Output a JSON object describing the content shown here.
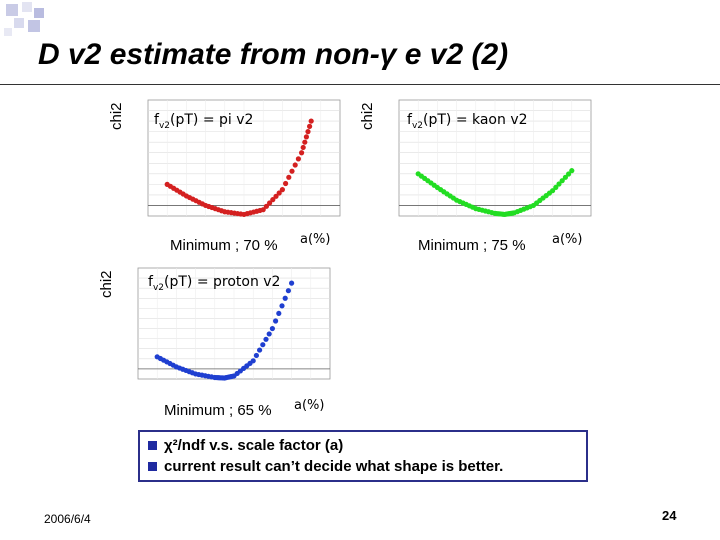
{
  "slide": {
    "title": "D v2 estimate from non-γ e v2 (2)",
    "date": "2006/6/4",
    "page_number": "24"
  },
  "notes": [
    "χ²/ndf v.s. scale factor (a)",
    "current result can’t decide what shape is better."
  ],
  "colors": {
    "bullet": "#1f2aa0",
    "box_border": "#2b2f8a",
    "pi_curve": "#d42020",
    "kaon_curve": "#22dd22",
    "proton_curve": "#1f3fd0"
  },
  "plots": [
    {
      "id": "pi",
      "ylabel": "chi2",
      "formula_main": "f",
      "formula_sub": "v2",
      "formula_rest": "(pT) = pi v2",
      "minimum_text": "Minimum ; 70 %",
      "xlabel": "a(%)"
    },
    {
      "id": "kaon",
      "ylabel": "chi2",
      "formula_main": "f",
      "formula_sub": "v2",
      "formula_rest": "(pT) = kaon v2",
      "minimum_text": "Minimum ; 75 %",
      "xlabel": "a(%)"
    },
    {
      "id": "proton",
      "ylabel": "chi2",
      "formula_main": "f",
      "formula_sub": "v2",
      "formula_rest": "(pT) = proton v2",
      "minimum_text": "Minimum ; 65 %",
      "xlabel": "a(%)"
    }
  ],
  "chart_data": [
    {
      "type": "scatter",
      "title": "",
      "xlabel": "a(%)",
      "ylabel": "chi2",
      "ylim": [
        0,
        11
      ],
      "series": [
        {
          "name": "pi",
          "minimum_x": 70,
          "x": [
            30,
            40,
            50,
            60,
            70,
            80,
            90,
            100,
            105
          ],
          "values": [
            3.0,
            1.9,
            1.0,
            0.4,
            0.15,
            0.6,
            2.5,
            6.0,
            9.0
          ]
        }
      ]
    },
    {
      "type": "scatter",
      "title": "",
      "xlabel": "a(%)",
      "ylabel": "chi2",
      "ylim": [
        0,
        11
      ],
      "series": [
        {
          "name": "kaon",
          "minimum_x": 75,
          "x": [
            30,
            40,
            50,
            60,
            70,
            75,
            80,
            90,
            100,
            110
          ],
          "values": [
            4.0,
            2.7,
            1.5,
            0.7,
            0.25,
            0.15,
            0.3,
            1.0,
            2.4,
            4.3
          ]
        }
      ]
    },
    {
      "type": "scatter",
      "title": "",
      "xlabel": "a(%)",
      "ylabel": "chi2",
      "ylim": [
        0,
        11
      ],
      "series": [
        {
          "name": "proton",
          "minimum_x": 65,
          "x": [
            30,
            40,
            50,
            60,
            65,
            70,
            80,
            90,
            100
          ],
          "values": [
            2.2,
            1.2,
            0.5,
            0.15,
            0.1,
            0.3,
            1.8,
            5.0,
            9.5
          ]
        }
      ]
    }
  ]
}
